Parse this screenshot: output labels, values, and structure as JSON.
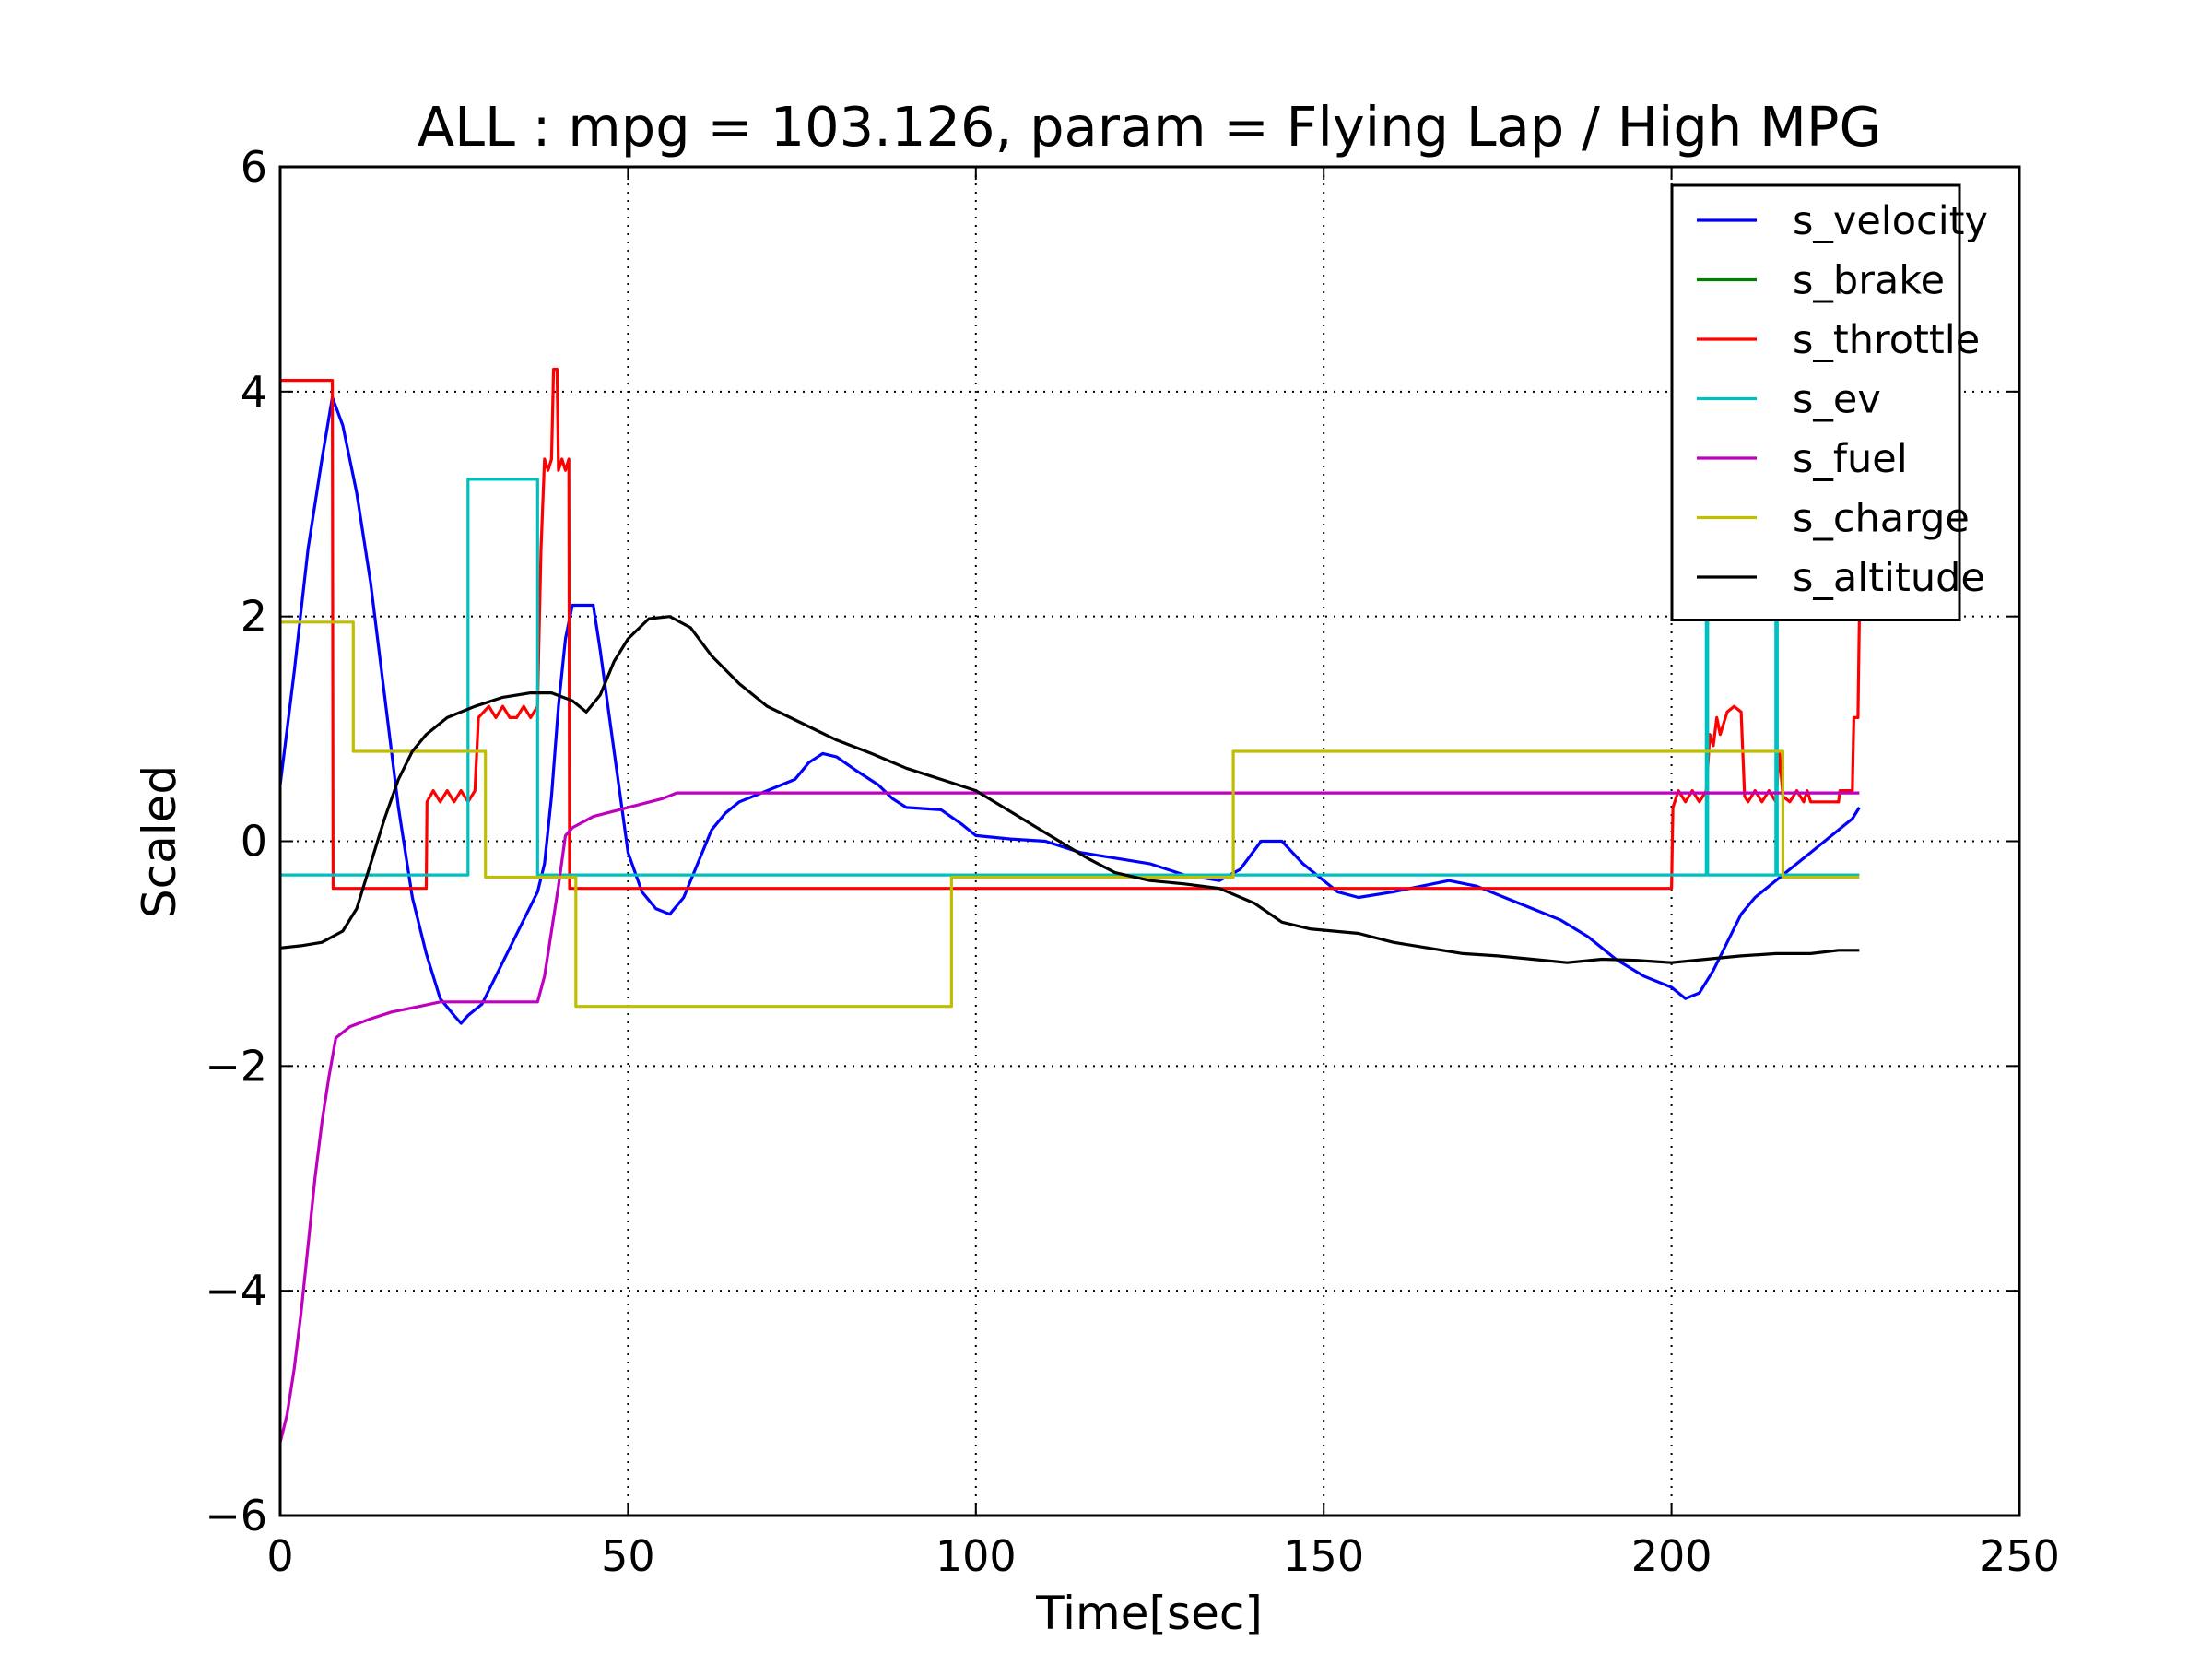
{
  "chart_data": {
    "type": "line",
    "title": "ALL : mpg = 103.126, param = Flying Lap / High MPG",
    "xlabel": "Time[sec]",
    "ylabel": "Scaled",
    "xlim": [
      0,
      250
    ],
    "ylim": [
      -6,
      6
    ],
    "xticks": [
      0,
      50,
      100,
      150,
      200,
      250
    ],
    "xtick_labels": [
      "0",
      "50",
      "100",
      "150",
      "200",
      "250"
    ],
    "yticks": [
      -6,
      -4,
      -2,
      0,
      2,
      4,
      6
    ],
    "ytick_labels": [
      "−6",
      "−4",
      "−2",
      "0",
      "2",
      "4",
      "6"
    ],
    "grid": true,
    "legend_position": "top-right",
    "series": [
      {
        "name": "s_velocity",
        "color": "#0000ff",
        "step": false,
        "points": [
          [
            0,
            0.5
          ],
          [
            2,
            1.5
          ],
          [
            4,
            2.6
          ],
          [
            6,
            3.4
          ],
          [
            7.5,
            3.95
          ],
          [
            9,
            3.7
          ],
          [
            11,
            3.1
          ],
          [
            13,
            2.3
          ],
          [
            15,
            1.3
          ],
          [
            17,
            0.3
          ],
          [
            19,
            -0.5
          ],
          [
            21,
            -1.0
          ],
          [
            23,
            -1.4
          ],
          [
            25,
            -1.55
          ],
          [
            26,
            -1.62
          ],
          [
            27,
            -1.55
          ],
          [
            29,
            -1.45
          ],
          [
            31,
            -1.2
          ],
          [
            33,
            -0.95
          ],
          [
            35,
            -0.7
          ],
          [
            37,
            -0.45
          ],
          [
            38,
            -0.2
          ],
          [
            39,
            0.4
          ],
          [
            40,
            1.2
          ],
          [
            41,
            1.8
          ],
          [
            42,
            2.1
          ],
          [
            45,
            2.1
          ],
          [
            46,
            1.7
          ],
          [
            48,
            0.8
          ],
          [
            50,
            -0.1
          ],
          [
            52,
            -0.45
          ],
          [
            54,
            -0.6
          ],
          [
            56,
            -0.65
          ],
          [
            58,
            -0.5
          ],
          [
            60,
            -0.2
          ],
          [
            62,
            0.1
          ],
          [
            64,
            0.25
          ],
          [
            66,
            0.35
          ],
          [
            70,
            0.45
          ],
          [
            74,
            0.55
          ],
          [
            76,
            0.7
          ],
          [
            78,
            0.78
          ],
          [
            80,
            0.75
          ],
          [
            83,
            0.62
          ],
          [
            86,
            0.5
          ],
          [
            88,
            0.38
          ],
          [
            90,
            0.3
          ],
          [
            95,
            0.28
          ],
          [
            98,
            0.15
          ],
          [
            100,
            0.05
          ],
          [
            105,
            0.02
          ],
          [
            110,
            0.0
          ],
          [
            115,
            -0.1
          ],
          [
            120,
            -0.15
          ],
          [
            125,
            -0.2
          ],
          [
            130,
            -0.3
          ],
          [
            135,
            -0.35
          ],
          [
            138,
            -0.25
          ],
          [
            141,
            0.0
          ],
          [
            144,
            0.0
          ],
          [
            147,
            -0.2
          ],
          [
            150,
            -0.35
          ],
          [
            152,
            -0.45
          ],
          [
            155,
            -0.5
          ],
          [
            160,
            -0.45
          ],
          [
            164,
            -0.4
          ],
          [
            168,
            -0.35
          ],
          [
            172,
            -0.4
          ],
          [
            176,
            -0.5
          ],
          [
            180,
            -0.6
          ],
          [
            184,
            -0.7
          ],
          [
            188,
            -0.85
          ],
          [
            192,
            -1.05
          ],
          [
            196,
            -1.2
          ],
          [
            200,
            -1.3
          ],
          [
            202,
            -1.4
          ],
          [
            204,
            -1.35
          ],
          [
            206,
            -1.15
          ],
          [
            208,
            -0.9
          ],
          [
            210,
            -0.65
          ],
          [
            212,
            -0.5
          ],
          [
            214,
            -0.4
          ],
          [
            216,
            -0.3
          ],
          [
            218,
            -0.2
          ],
          [
            220,
            -0.1
          ],
          [
            222,
            0.0
          ],
          [
            224,
            0.1
          ],
          [
            226,
            0.2
          ],
          [
            227,
            0.3
          ]
        ]
      },
      {
        "name": "s_brake",
        "color": "#008000",
        "step": false,
        "points": []
      },
      {
        "name": "s_throttle",
        "color": "#ff0000",
        "step": false,
        "points": [
          [
            0,
            4.1
          ],
          [
            7.5,
            4.1
          ],
          [
            7.6,
            -0.42
          ],
          [
            21,
            -0.42
          ],
          [
            21.1,
            0.35
          ],
          [
            22,
            0.45
          ],
          [
            23,
            0.35
          ],
          [
            24,
            0.45
          ],
          [
            25,
            0.35
          ],
          [
            26,
            0.45
          ],
          [
            27,
            0.35
          ],
          [
            28,
            0.45
          ],
          [
            28.5,
            1.1
          ],
          [
            30,
            1.2
          ],
          [
            31,
            1.1
          ],
          [
            32,
            1.2
          ],
          [
            33,
            1.1
          ],
          [
            34,
            1.1
          ],
          [
            35,
            1.2
          ],
          [
            36,
            1.1
          ],
          [
            37,
            1.2
          ],
          [
            37.2,
            1.8
          ],
          [
            37.5,
            2.6
          ],
          [
            38,
            3.4
          ],
          [
            38.5,
            3.3
          ],
          [
            39,
            3.4
          ],
          [
            39.3,
            4.2
          ],
          [
            39.8,
            4.2
          ],
          [
            40,
            3.3
          ],
          [
            40.5,
            3.4
          ],
          [
            41,
            3.3
          ],
          [
            41.5,
            3.4
          ],
          [
            41.6,
            -0.42
          ],
          [
            200,
            -0.42
          ],
          [
            200.2,
            0.3
          ],
          [
            201,
            0.45
          ],
          [
            202,
            0.35
          ],
          [
            203,
            0.45
          ],
          [
            204,
            0.35
          ],
          [
            205,
            0.45
          ],
          [
            205.5,
            0.95
          ],
          [
            206,
            0.85
          ],
          [
            206.5,
            1.1
          ],
          [
            207,
            0.95
          ],
          [
            208,
            1.15
          ],
          [
            209,
            1.2
          ],
          [
            210,
            1.15
          ],
          [
            210.5,
            0.4
          ],
          [
            211,
            0.35
          ],
          [
            212,
            0.45
          ],
          [
            213,
            0.35
          ],
          [
            214,
            0.45
          ],
          [
            215,
            0.35
          ],
          [
            215.5,
            0.8
          ],
          [
            216,
            0.4
          ],
          [
            217,
            0.35
          ],
          [
            218,
            0.45
          ],
          [
            219,
            0.35
          ],
          [
            219.5,
            0.45
          ],
          [
            220,
            0.35
          ],
          [
            224,
            0.35
          ],
          [
            224.2,
            0.45
          ],
          [
            226,
            0.45
          ],
          [
            226.2,
            1.1
          ],
          [
            226.8,
            1.1
          ],
          [
            227,
            2.0
          ]
        ]
      },
      {
        "name": "s_ev",
        "color": "#00bfbf",
        "step": true,
        "points": [
          [
            0,
            -0.3
          ],
          [
            27,
            -0.3
          ],
          [
            27,
            3.22
          ],
          [
            37,
            3.22
          ],
          [
            37,
            -0.3
          ],
          [
            205,
            -0.3
          ],
          [
            205,
            2.0
          ],
          [
            205.2,
            2.0
          ],
          [
            205.2,
            -0.3
          ],
          [
            215,
            -0.3
          ],
          [
            215,
            2.0
          ],
          [
            215.2,
            2.0
          ],
          [
            215.2,
            -0.3
          ],
          [
            227,
            -0.3
          ]
        ]
      },
      {
        "name": "s_fuel",
        "color": "#bf00bf",
        "step": false,
        "points": [
          [
            0,
            -5.35
          ],
          [
            1,
            -5.1
          ],
          [
            2,
            -4.7
          ],
          [
            3,
            -4.2
          ],
          [
            4,
            -3.6
          ],
          [
            5,
            -3.0
          ],
          [
            6,
            -2.5
          ],
          [
            7,
            -2.1
          ],
          [
            8,
            -1.75
          ],
          [
            10,
            -1.65
          ],
          [
            13,
            -1.58
          ],
          [
            16,
            -1.52
          ],
          [
            20,
            -1.47
          ],
          [
            23,
            -1.43
          ],
          [
            28,
            -1.43
          ],
          [
            35,
            -1.43
          ],
          [
            37,
            -1.43
          ],
          [
            38,
            -1.2
          ],
          [
            39,
            -0.8
          ],
          [
            40,
            -0.4
          ],
          [
            41,
            0.05
          ],
          [
            42,
            0.12
          ],
          [
            45,
            0.22
          ],
          [
            50,
            0.3
          ],
          [
            55,
            0.38
          ],
          [
            57,
            0.43
          ],
          [
            100,
            0.43
          ],
          [
            150,
            0.43
          ],
          [
            200,
            0.43
          ],
          [
            227,
            0.43
          ]
        ]
      },
      {
        "name": "s_charge",
        "color": "#bfbf00",
        "step": true,
        "points": [
          [
            0,
            1.95
          ],
          [
            10.5,
            1.95
          ],
          [
            10.5,
            0.8
          ],
          [
            29.5,
            0.8
          ],
          [
            29.5,
            -0.32
          ],
          [
            42.5,
            -0.32
          ],
          [
            42.5,
            -1.47
          ],
          [
            96.5,
            -1.47
          ],
          [
            96.5,
            -0.32
          ],
          [
            137,
            -0.32
          ],
          [
            137,
            0.8
          ],
          [
            216,
            0.8
          ],
          [
            216,
            -0.32
          ],
          [
            227,
            -0.32
          ]
        ]
      },
      {
        "name": "s_altitude",
        "color": "#000000",
        "step": false,
        "points": [
          [
            0,
            -0.95
          ],
          [
            3,
            -0.93
          ],
          [
            6,
            -0.9
          ],
          [
            9,
            -0.8
          ],
          [
            11,
            -0.6
          ],
          [
            13,
            -0.2
          ],
          [
            15,
            0.2
          ],
          [
            17,
            0.55
          ],
          [
            19,
            0.8
          ],
          [
            21,
            0.95
          ],
          [
            24,
            1.1
          ],
          [
            28,
            1.2
          ],
          [
            32,
            1.28
          ],
          [
            36,
            1.32
          ],
          [
            39,
            1.32
          ],
          [
            42,
            1.25
          ],
          [
            44,
            1.15
          ],
          [
            46,
            1.3
          ],
          [
            48,
            1.6
          ],
          [
            50,
            1.8
          ],
          [
            53,
            1.98
          ],
          [
            56,
            2.0
          ],
          [
            59,
            1.9
          ],
          [
            62,
            1.65
          ],
          [
            66,
            1.4
          ],
          [
            70,
            1.2
          ],
          [
            75,
            1.05
          ],
          [
            80,
            0.9
          ],
          [
            85,
            0.78
          ],
          [
            90,
            0.65
          ],
          [
            95,
            0.55
          ],
          [
            100,
            0.45
          ],
          [
            104,
            0.3
          ],
          [
            108,
            0.15
          ],
          [
            112,
            0.0
          ],
          [
            116,
            -0.15
          ],
          [
            120,
            -0.28
          ],
          [
            125,
            -0.35
          ],
          [
            130,
            -0.38
          ],
          [
            135,
            -0.42
          ],
          [
            140,
            -0.55
          ],
          [
            144,
            -0.72
          ],
          [
            148,
            -0.78
          ],
          [
            155,
            -0.82
          ],
          [
            160,
            -0.9
          ],
          [
            165,
            -0.95
          ],
          [
            170,
            -1.0
          ],
          [
            175,
            -1.02
          ],
          [
            180,
            -1.05
          ],
          [
            185,
            -1.08
          ],
          [
            190,
            -1.05
          ],
          [
            195,
            -1.06
          ],
          [
            200,
            -1.08
          ],
          [
            205,
            -1.05
          ],
          [
            210,
            -1.02
          ],
          [
            215,
            -1.0
          ],
          [
            220,
            -1.0
          ],
          [
            224,
            -0.97
          ],
          [
            227,
            -0.97
          ]
        ]
      }
    ]
  }
}
